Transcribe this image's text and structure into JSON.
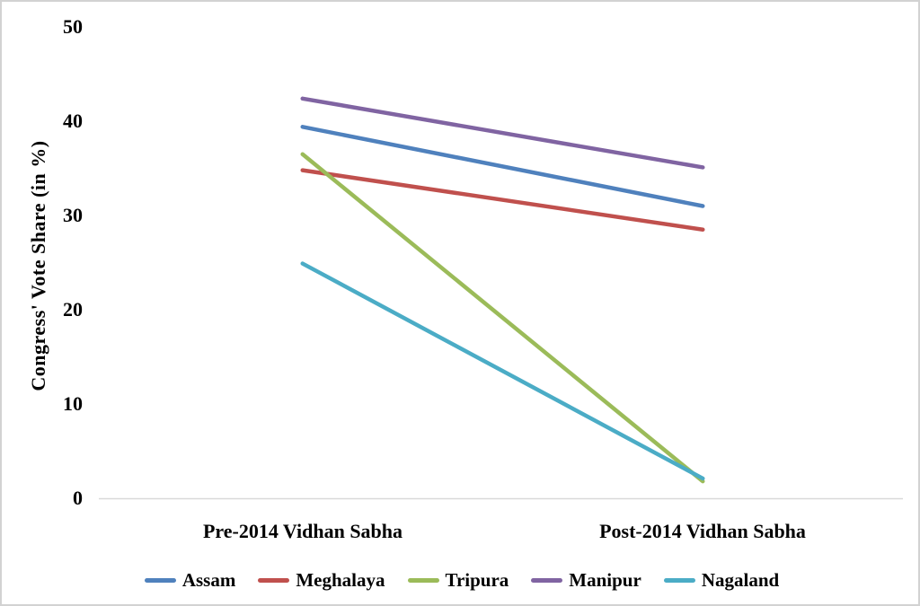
{
  "chart_data": {
    "type": "line",
    "title": "",
    "xlabel": "",
    "ylabel": "Congress' Vote Share (in %)",
    "categories": [
      "Pre-2014 Vidhan Sabha",
      "Post-2014 Vidhan Sabha"
    ],
    "series": [
      {
        "name": "Assam",
        "color": "#4F81BD",
        "values": [
          39.4,
          31.0
        ]
      },
      {
        "name": "Meghalaya",
        "color": "#C0504D",
        "values": [
          34.8,
          28.5
        ]
      },
      {
        "name": "Tripura",
        "color": "#9BBB59",
        "values": [
          36.5,
          1.8
        ]
      },
      {
        "name": "Manipur",
        "color": "#8064A2",
        "values": [
          42.4,
          35.1
        ]
      },
      {
        "name": "Nagaland",
        "color": "#4BACC6",
        "values": [
          24.9,
          2.1
        ]
      }
    ],
    "yticks": [
      0,
      10,
      20,
      30,
      40,
      50
    ],
    "ylim": [
      0,
      50
    ],
    "grid": false,
    "legend_position": "bottom",
    "axis_line_color": "#D9D9D9",
    "background_color": "#FFFFFF"
  }
}
